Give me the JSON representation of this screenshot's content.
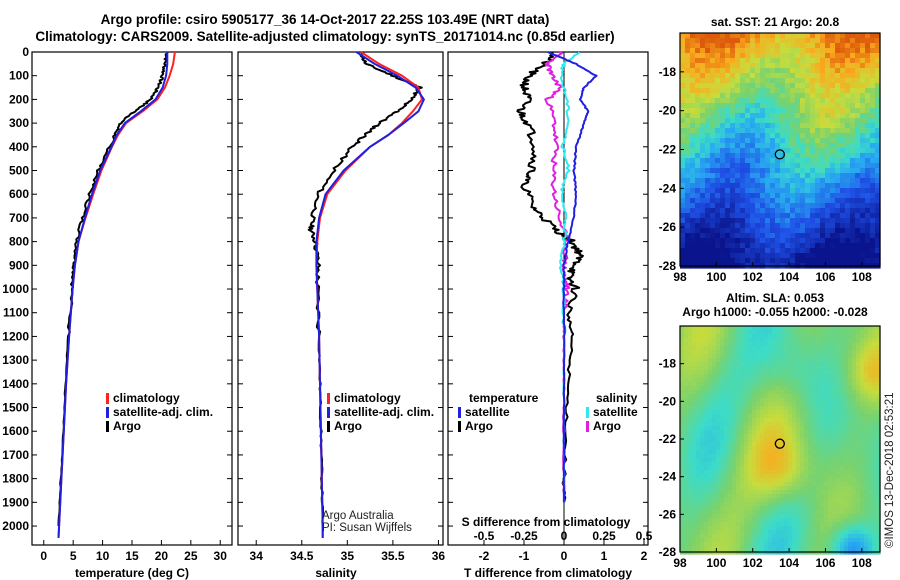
{
  "titles": {
    "line1": "Argo profile: csiro 5905177_36 14-Oct-2017 22.25S 103.49E (NRT data)",
    "line2": "Climatology: CARS2009. Satellite-adjusted climatology: synTS_20171014.nc (0.85d earlier)"
  },
  "colors": {
    "climatology": "#ff2020",
    "satellite": "#2020e0",
    "argo": "#000000",
    "sat_salinity": "#30e8f0",
    "argo_salinity": "#e020e0"
  },
  "attribution": {
    "line1": "Argo Australia",
    "line2": "PI: Susan Wijffels",
    "credit": "©IMOS 13-Dec-2018 02:53:21"
  },
  "chart_data": [
    {
      "type": "line",
      "name": "temperature-profile",
      "xlabel": "temperature (deg C)",
      "ylabel": "",
      "xlim": [
        -2,
        32
      ],
      "ylim": [
        2080,
        0
      ],
      "x_ticks": [
        "0",
        "5",
        "10",
        "15",
        "20",
        "25",
        "30"
      ],
      "x_tick_values": [
        0,
        5,
        10,
        15,
        20,
        25,
        30
      ],
      "y_ticks": [
        "0",
        "100",
        "200",
        "300",
        "400",
        "500",
        "600",
        "700",
        "800",
        "900",
        "1000",
        "1100",
        "1200",
        "1300",
        "1400",
        "1500",
        "1600",
        "1700",
        "1800",
        "1900",
        "2000"
      ],
      "y_tick_values": [
        0,
        100,
        200,
        300,
        400,
        500,
        600,
        700,
        800,
        900,
        1000,
        1100,
        1200,
        1300,
        1400,
        1500,
        1600,
        1700,
        1800,
        1900,
        2000
      ],
      "legend": [
        "climatology",
        "satellite-adj. clim.",
        "Argo"
      ],
      "series": [
        {
          "name": "climatology",
          "depth": [
            0,
            50,
            100,
            150,
            200,
            250,
            300,
            350,
            400,
            500,
            600,
            700,
            800,
            900,
            1000,
            1200,
            1400,
            1600,
            1800,
            2000,
            2050
          ],
          "values": [
            22.3,
            22.0,
            21.4,
            20.6,
            19.3,
            16.8,
            14.0,
            12.6,
            11.6,
            9.8,
            8.4,
            7.1,
            5.9,
            5.3,
            4.9,
            4.3,
            3.8,
            3.4,
            3.0,
            2.6,
            2.5
          ]
        },
        {
          "name": "satellite-adj. clim.",
          "depth": [
            0,
            50,
            100,
            150,
            200,
            250,
            300,
            350,
            400,
            500,
            600,
            700,
            800,
            900,
            1000,
            1200,
            1400,
            1600,
            1800,
            2000,
            2050
          ],
          "values": [
            21.0,
            21.0,
            20.8,
            20.2,
            19.0,
            16.5,
            13.8,
            12.4,
            11.5,
            9.6,
            8.2,
            7.0,
            5.9,
            5.3,
            4.9,
            4.3,
            3.8,
            3.4,
            3.0,
            2.6,
            2.5
          ]
        },
        {
          "name": "Argo",
          "depth": [
            0,
            50,
            100,
            150,
            200,
            250,
            300,
            350,
            400,
            500,
            600,
            700,
            800,
            900,
            1000,
            1200,
            1400,
            1600,
            1800,
            2000
          ],
          "values": [
            21.0,
            20.6,
            20.2,
            19.4,
            18.2,
            15.5,
            13.0,
            12.1,
            11.2,
            9.3,
            7.8,
            6.6,
            5.6,
            5.2,
            4.8,
            4.2,
            3.7,
            3.3,
            2.9,
            2.5
          ]
        }
      ]
    },
    {
      "type": "line",
      "name": "salinity-profile",
      "xlabel": "salinity",
      "xlim": [
        33.8,
        36.05
      ],
      "ylim": [
        2080,
        0
      ],
      "x_ticks": [
        "34",
        "34.5",
        "35",
        "35.5",
        "36"
      ],
      "x_tick_values": [
        34,
        34.5,
        35,
        35.5,
        36
      ],
      "legend": [
        "climatology",
        "satellite-adj. clim.",
        "Argo"
      ],
      "series": [
        {
          "name": "climatology",
          "depth": [
            0,
            50,
            100,
            150,
            200,
            250,
            300,
            350,
            400,
            500,
            600,
            700,
            800,
            900,
            1000,
            1200,
            1400,
            1600,
            1800,
            2000,
            2050
          ],
          "values": [
            35.15,
            35.35,
            35.6,
            35.78,
            35.82,
            35.72,
            35.6,
            35.45,
            35.25,
            34.98,
            34.78,
            34.7,
            34.67,
            34.66,
            34.67,
            34.69,
            34.7,
            34.71,
            34.72,
            34.73,
            34.73
          ]
        },
        {
          "name": "satellite-adj. clim.",
          "depth": [
            0,
            50,
            100,
            150,
            200,
            250,
            300,
            350,
            400,
            500,
            600,
            700,
            800,
            900,
            1000,
            1200,
            1400,
            1600,
            1800,
            2000,
            2050
          ],
          "values": [
            35.1,
            35.3,
            35.55,
            35.75,
            35.84,
            35.78,
            35.62,
            35.45,
            35.25,
            34.96,
            34.76,
            34.69,
            34.66,
            34.66,
            34.67,
            34.69,
            34.7,
            34.71,
            34.72,
            34.73,
            34.73
          ]
        },
        {
          "name": "Argo",
          "depth": [
            0,
            50,
            100,
            150,
            200,
            250,
            300,
            350,
            400,
            500,
            600,
            700,
            750,
            800,
            900,
            1000,
            1200,
            1400,
            1600,
            1800,
            2000
          ],
          "values": [
            35.15,
            35.2,
            35.5,
            35.8,
            35.7,
            35.55,
            35.35,
            35.2,
            35.05,
            34.85,
            34.68,
            34.62,
            34.6,
            34.65,
            34.68,
            34.67,
            34.69,
            34.7,
            34.71,
            34.72,
            34.73
          ]
        }
      ]
    },
    {
      "type": "line",
      "name": "difference-from-climatology",
      "xlabel": "T difference from climatology",
      "xlabel_top": "S difference from climatology",
      "xlim": [
        -2.9,
        2.1
      ],
      "ylim": [
        2080,
        0
      ],
      "x_ticks": [
        "-2",
        "-1",
        "0",
        "1",
        "2"
      ],
      "x_tick_values": [
        -2,
        -1,
        0,
        1,
        2
      ],
      "x2_ticks": [
        "-0.5",
        "-0.25",
        "0",
        "0.25",
        "0.5"
      ],
      "x2_tick_values": [
        -0.5,
        -0.25,
        0,
        0.25,
        0.5
      ],
      "legend_temperature_title": "temperature",
      "legend_salinity_title": "salinity",
      "legend_temperature": [
        "satellite",
        "Argo"
      ],
      "legend_salinity": [
        "satellite",
        "Argo"
      ],
      "series": [
        {
          "name": "temperature satellite",
          "depth": [
            0,
            50,
            100,
            150,
            200,
            250,
            300,
            400,
            500,
            600,
            700,
            800,
            900,
            1000,
            1200,
            1400,
            1600,
            1800,
            1900
          ],
          "values": [
            -0.4,
            0.3,
            0.8,
            0.5,
            0.4,
            0.6,
            0.5,
            0.3,
            0.25,
            0.3,
            0.25,
            0.1,
            0.0,
            0.0,
            0.0,
            0.0,
            0.0,
            0.0,
            0.0
          ]
        },
        {
          "name": "temperature Argo",
          "depth": [
            0,
            50,
            100,
            150,
            200,
            250,
            300,
            400,
            500,
            550,
            650,
            700,
            750,
            800,
            850,
            900,
            950,
            1000,
            1100,
            1200,
            1400,
            1600,
            1800,
            1900
          ],
          "values": [
            -0.2,
            -0.5,
            -0.9,
            -1.0,
            -0.9,
            -1.1,
            -0.9,
            -0.7,
            -0.8,
            -1.0,
            -0.8,
            -0.5,
            -0.2,
            0.2,
            0.4,
            0.3,
            0.1,
            0.3,
            0.1,
            0.2,
            0.1,
            0.05,
            0.0,
            0.0
          ]
        },
        {
          "name": "salinity satellite",
          "depth": [
            0,
            50,
            100,
            200,
            300,
            400,
            500,
            600,
            700,
            800,
            900,
            1000,
            1200,
            1400,
            1600,
            1800,
            1900
          ],
          "values": [
            0.1,
            0.0,
            -0.02,
            0.02,
            0.03,
            -0.01,
            0.03,
            -0.02,
            0.01,
            0.0,
            -0.02,
            0.0,
            0.0,
            0.0,
            0.0,
            0.0,
            0.0
          ]
        },
        {
          "name": "salinity Argo",
          "depth": [
            0,
            50,
            100,
            150,
            200,
            300,
            400,
            500,
            600,
            700,
            800,
            900,
            950,
            1000,
            1100,
            1200,
            1400,
            1600,
            1800,
            1900
          ],
          "values": [
            -0.02,
            -0.1,
            -0.08,
            -0.02,
            -0.1,
            -0.06,
            -0.05,
            -0.07,
            -0.06,
            -0.03,
            0.02,
            0.0,
            0.0,
            0.02,
            0.0,
            0.0,
            0.0,
            0.0,
            0.0,
            0.0
          ]
        }
      ]
    },
    {
      "type": "heatmap",
      "name": "satellite-sst-map",
      "title": "sat. SST: 21  Argo: 20.8",
      "xlim": [
        98,
        109
      ],
      "ylim": [
        -28,
        -16
      ],
      "x_ticks": [
        "98",
        "100",
        "102",
        "104",
        "106",
        "108"
      ],
      "x_tick_values": [
        98,
        100,
        102,
        104,
        106,
        108
      ],
      "y_ticks": [
        "-18",
        "-20",
        "-22",
        "-24",
        "-26",
        "-28"
      ],
      "y_tick_values": [
        -18,
        -20,
        -22,
        -24,
        -26,
        -28
      ],
      "argo_position": [
        103.49,
        -22.25
      ]
    },
    {
      "type": "heatmap",
      "name": "altimetry-sla-map",
      "title": "Altim. SLA: 0.053",
      "subtitle": "Argo h1000: -0.055  h2000: -0.028",
      "xlim": [
        98,
        109
      ],
      "ylim": [
        -28,
        -16
      ],
      "x_ticks": [
        "98",
        "100",
        "102",
        "104",
        "106",
        "108"
      ],
      "x_tick_values": [
        98,
        100,
        102,
        104,
        106,
        108
      ],
      "y_ticks": [
        "-18",
        "-20",
        "-22",
        "-24",
        "-26",
        "-28"
      ],
      "y_tick_values": [
        -18,
        -20,
        -22,
        -24,
        -26,
        -28
      ],
      "argo_position": [
        103.49,
        -22.25
      ]
    }
  ]
}
